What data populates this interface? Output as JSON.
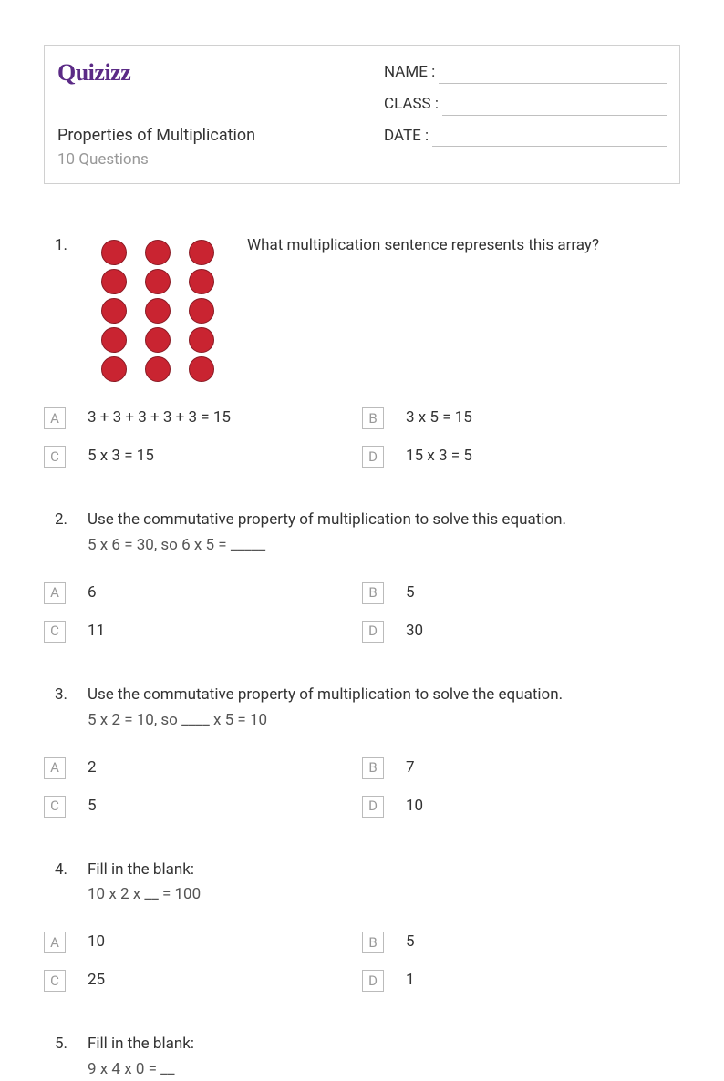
{
  "logo_text": "Quizizz",
  "quiz_title": "Properties of Multiplication",
  "quiz_subtitle": "10 Questions",
  "form": {
    "name_label": "NAME :",
    "class_label": "CLASS :",
    "date_label": "DATE  :"
  },
  "array": {
    "rows": 5,
    "cols": 3,
    "dot_color": "#c92431",
    "dot_border": "#8a1a24"
  },
  "questions": [
    {
      "num": "1.",
      "has_image": true,
      "text": "What multiplication sentence represents this array?",
      "sub": "",
      "options": [
        {
          "letter": "A",
          "text": "3 + 3 + 3 + 3 + 3 = 15"
        },
        {
          "letter": "B",
          "text": "3 x 5 = 15"
        },
        {
          "letter": "C",
          "text": "5 x 3 = 15"
        },
        {
          "letter": "D",
          "text": "15 x 3 = 5"
        }
      ]
    },
    {
      "num": "2.",
      "has_image": false,
      "text": "Use the commutative property of multiplication to solve this equation.",
      "sub": "5 x 6 = 30, so 6 x 5 = _____",
      "options": [
        {
          "letter": "A",
          "text": "6"
        },
        {
          "letter": "B",
          "text": "5"
        },
        {
          "letter": "C",
          "text": "11"
        },
        {
          "letter": "D",
          "text": "30"
        }
      ]
    },
    {
      "num": "3.",
      "has_image": false,
      "text": "Use the commutative property of multiplication to solve the equation.",
      "sub": "5 x 2 = 10, so ____ x 5 = 10",
      "options": [
        {
          "letter": "A",
          "text": "2"
        },
        {
          "letter": "B",
          "text": "7"
        },
        {
          "letter": "C",
          "text": "5"
        },
        {
          "letter": "D",
          "text": "10"
        }
      ]
    },
    {
      "num": "4.",
      "has_image": false,
      "text": "Fill in the blank:",
      "sub": "10 x 2 x __ = 100",
      "options": [
        {
          "letter": "A",
          "text": "10"
        },
        {
          "letter": "B",
          "text": "5"
        },
        {
          "letter": "C",
          "text": "25"
        },
        {
          "letter": "D",
          "text": "1"
        }
      ]
    },
    {
      "num": "5.",
      "has_image": false,
      "text": "Fill in the blank:",
      "sub": "9 x 4 x 0 = __",
      "options": []
    }
  ]
}
